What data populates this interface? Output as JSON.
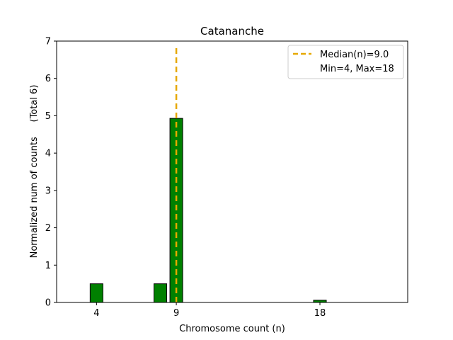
{
  "chart_data": {
    "type": "bar",
    "title": "Catananche",
    "xlabel": "Chromosome count (n)",
    "ylabel": "Normalized num of counts     (Total 6)",
    "xlim": [
      1.5,
      23.5
    ],
    "ylim": [
      0,
      7
    ],
    "xticks": [
      4,
      9,
      18
    ],
    "yticks": [
      0,
      1,
      2,
      3,
      4,
      5,
      6,
      7
    ],
    "bar_width": 0.8,
    "bars": [
      {
        "x": 4,
        "value": 0.5
      },
      {
        "x": 8,
        "value": 0.5
      },
      {
        "x": 9,
        "value": 4.93
      },
      {
        "x": 18,
        "value": 0.06
      }
    ],
    "median_line": {
      "x": 9.0,
      "ymax": 6.85
    },
    "legend": {
      "position": "top-right",
      "entries": [
        "Median(n)=9.0",
        "Min=4, Max=18"
      ]
    },
    "colors": {
      "bar_fill": "#008000",
      "bar_edge": "#000000",
      "median": "#e6a800",
      "axes": "#000000"
    }
  }
}
